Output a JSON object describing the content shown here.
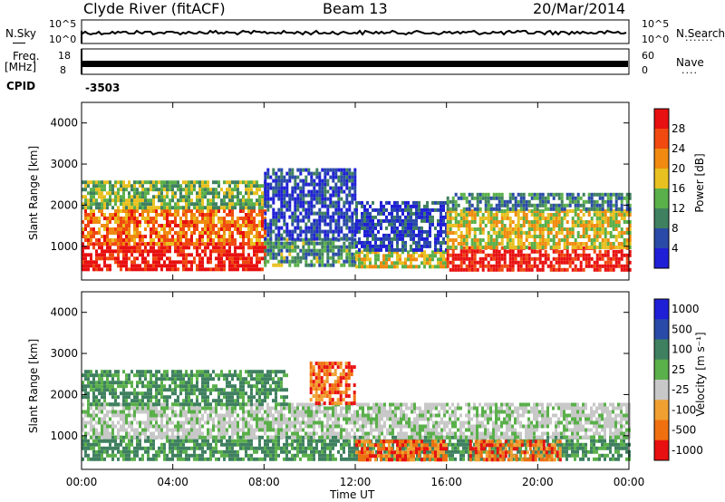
{
  "header": {
    "station": "Clyde River (fitACF)",
    "beam": "Beam 13",
    "date": "20/Mar/2014"
  },
  "top_panels": {
    "nsky_label": "N.Sky",
    "nsky_ticks": [
      "10^5",
      "10^0"
    ],
    "nsearch_label": "N.Search",
    "nsearch_ticks": [
      "10^5",
      "10^0"
    ],
    "freq_label_1": "Freq.",
    "freq_label_2": "[MHz]",
    "freq_ticks": [
      "18",
      "8"
    ],
    "nave_label": "Nave",
    "nave_ticks": [
      "60",
      "0"
    ],
    "cpid_label": "CPID",
    "cpid_value": "-3503"
  },
  "chart_data": [
    {
      "type": "heatmap",
      "title": "",
      "xlabel": "Time UT",
      "ylabel": "Slant Range [km]",
      "x_ticks": [
        "00:00",
        "04:00",
        "08:00",
        "12:00",
        "16:00",
        "20:00",
        "00:00"
      ],
      "y_ticks": [
        "1000",
        "2000",
        "3000",
        "4000"
      ],
      "ylim": [
        180,
        4500
      ],
      "colorbar_label": "Power [dB]",
      "colorbar_ticks": [
        "4",
        "8",
        "12",
        "16",
        "20",
        "24",
        "28"
      ],
      "colors": [
        "#1f1fd6",
        "#2a4aa8",
        "#3f8060",
        "#5ab04a",
        "#e8c020",
        "#f08a10",
        "#f04a10",
        "#e81010"
      ],
      "bands": [
        {
          "t0": 0,
          "t1": 8,
          "r0": 400,
          "r1": 1100,
          "level": 0.95
        },
        {
          "t0": 0,
          "t1": 8,
          "r0": 1100,
          "r1": 1900,
          "level": 0.75
        },
        {
          "t0": 0,
          "t1": 8,
          "r0": 1900,
          "r1": 2600,
          "level": 0.45
        },
        {
          "t0": 8,
          "t1": 12,
          "r0": 500,
          "r1": 1200,
          "level": 0.35
        },
        {
          "t0": 8,
          "t1": 12,
          "r0": 1200,
          "r1": 2900,
          "level": 0.15
        },
        {
          "t0": 12,
          "t1": 16,
          "r0": 500,
          "r1": 900,
          "level": 0.55
        },
        {
          "t0": 12,
          "t1": 16,
          "r0": 900,
          "r1": 2100,
          "level": 0.15
        },
        {
          "t0": 16,
          "t1": 24,
          "r0": 400,
          "r1": 1000,
          "level": 0.95
        },
        {
          "t0": 16,
          "t1": 24,
          "r0": 1000,
          "r1": 1900,
          "level": 0.55
        },
        {
          "t0": 16,
          "t1": 24,
          "r0": 1900,
          "r1": 2300,
          "level": 0.3
        }
      ]
    },
    {
      "type": "heatmap",
      "title": "",
      "xlabel": "Time UT",
      "ylabel": "Slant Range [km]",
      "x_ticks": [
        "00:00",
        "04:00",
        "08:00",
        "12:00",
        "16:00",
        "20:00",
        "00:00"
      ],
      "y_ticks": [
        "1000",
        "2000",
        "3000",
        "4000"
      ],
      "ylim": [
        180,
        4500
      ],
      "colorbar_label": "Velocity [m s⁻¹]",
      "colorbar_ticks": [
        "1000",
        "500",
        "100",
        "25",
        "-25",
        "-100",
        "-500",
        "-1000"
      ],
      "colors": [
        "#1f1fd6",
        "#2a4aa8",
        "#3f8060",
        "#5ab04a",
        "#c8c8c8",
        "#f0a030",
        "#f07010",
        "#e81010"
      ],
      "bands": [
        {
          "t0": 0,
          "t1": 24,
          "r0": 400,
          "r1": 1000,
          "level": "green"
        },
        {
          "t0": 0,
          "t1": 24,
          "r0": 1000,
          "r1": 1800,
          "level": "grey"
        },
        {
          "t0": 0,
          "t1": 9,
          "r0": 1800,
          "r1": 2600,
          "level": "green"
        },
        {
          "t0": 10,
          "t1": 12,
          "r0": 1800,
          "r1": 2800,
          "level": "orange"
        },
        {
          "t0": 12,
          "t1": 16,
          "r0": 400,
          "r1": 900,
          "level": "orange"
        },
        {
          "t0": 17,
          "t1": 21,
          "r0": 400,
          "r1": 900,
          "level": "orange"
        }
      ]
    }
  ]
}
